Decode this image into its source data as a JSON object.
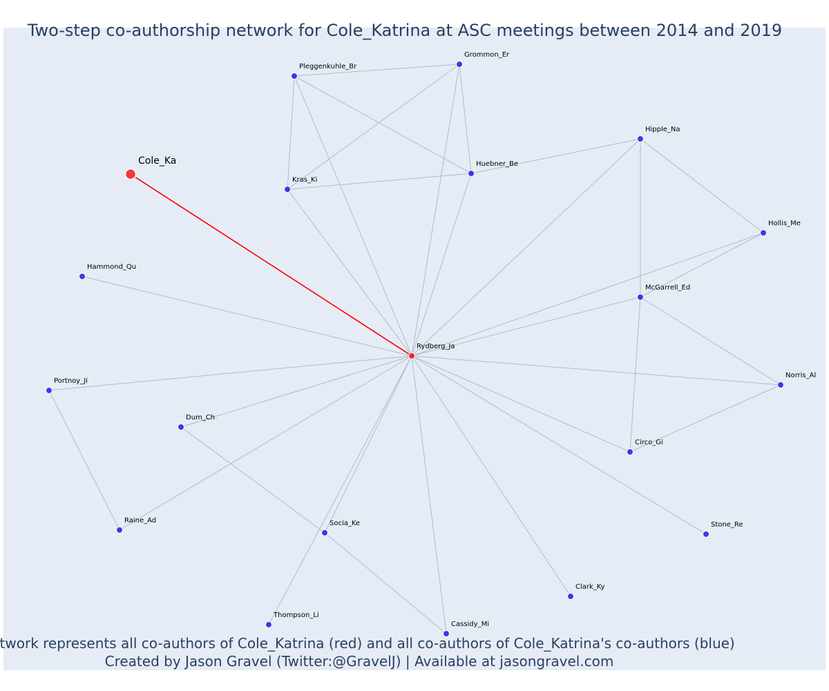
{
  "chart_data": {
    "type": "network",
    "title": "Two-step co-authorship network for Cole_Katrina at ASC meetings between 2014 and 2019",
    "caption_lines": [
      "Network represents all co-authors of Cole_Katrina (red) and all co-authors of Cole_Katrina's co-authors (blue)",
      "Created by Jason Gravel (Twitter:@GravelJ) | Available at jasongravel.com"
    ],
    "colors": {
      "background": "#e5ecf6",
      "focal_node": "#ef3b3b",
      "direct_coauthor": "#ef2a2a",
      "second_step_node": "#3a3ae8",
      "focal_edge": "#ff0000",
      "edge": "#b5b9c6",
      "text": "#2a3f5f"
    },
    "nodes": [
      {
        "id": "Cole_Ka",
        "label": "Cole_Ka",
        "group": "focal"
      },
      {
        "id": "Rydberg_Ja",
        "label": "Rydberg_Ja",
        "group": "coauthor"
      },
      {
        "id": "Grommon_Er",
        "label": "Grommon_Er",
        "group": "second"
      },
      {
        "id": "Pleggenkuhle_Br",
        "label": "Pleggenkuhle_Br",
        "group": "second"
      },
      {
        "id": "Hipple_Na",
        "label": "Hipple_Na",
        "group": "second"
      },
      {
        "id": "Huebner_Be",
        "label": "Huebner_Be",
        "group": "second"
      },
      {
        "id": "Kras_Ki",
        "label": "Kras_Ki",
        "group": "second"
      },
      {
        "id": "Hollis_Me",
        "label": "Hollis_Me",
        "group": "second"
      },
      {
        "id": "Hammond_Qu",
        "label": "Hammond_Qu",
        "group": "second"
      },
      {
        "id": "McGarrell_Ed",
        "label": "McGarrell_Ed",
        "group": "second"
      },
      {
        "id": "Norris_Al",
        "label": "Norris_Al",
        "group": "second"
      },
      {
        "id": "Portnoy_Ji",
        "label": "Portnoy_Ji",
        "group": "second"
      },
      {
        "id": "Dum_Ch",
        "label": "Dum_Ch",
        "group": "second"
      },
      {
        "id": "Circo_Gi",
        "label": "Circo_Gi",
        "group": "second"
      },
      {
        "id": "Raine_Ad",
        "label": "Raine_Ad",
        "group": "second"
      },
      {
        "id": "Socia_Ke",
        "label": "Socia_Ke",
        "group": "second"
      },
      {
        "id": "Stone_Re",
        "label": "Stone_Re",
        "group": "second"
      },
      {
        "id": "Clark_Ky",
        "label": "Clark_Ky",
        "group": "second"
      },
      {
        "id": "Thompson_Li",
        "label": "Thompson_Li",
        "group": "second"
      },
      {
        "id": "Cassidy_Mi",
        "label": "Cassidy_Mi",
        "group": "second"
      }
    ],
    "edges": [
      {
        "source": "Cole_Ka",
        "target": "Rydberg_Ja",
        "focal": true
      },
      {
        "source": "Rydberg_Ja",
        "target": "Grommon_Er"
      },
      {
        "source": "Rydberg_Ja",
        "target": "Pleggenkuhle_Br"
      },
      {
        "source": "Rydberg_Ja",
        "target": "Hipple_Na"
      },
      {
        "source": "Rydberg_Ja",
        "target": "Huebner_Be"
      },
      {
        "source": "Rydberg_Ja",
        "target": "Kras_Ki"
      },
      {
        "source": "Rydberg_Ja",
        "target": "Hollis_Me"
      },
      {
        "source": "Rydberg_Ja",
        "target": "Hammond_Qu"
      },
      {
        "source": "Rydberg_Ja",
        "target": "McGarrell_Ed"
      },
      {
        "source": "Rydberg_Ja",
        "target": "Norris_Al"
      },
      {
        "source": "Rydberg_Ja",
        "target": "Portnoy_Ji"
      },
      {
        "source": "Rydberg_Ja",
        "target": "Dum_Ch"
      },
      {
        "source": "Rydberg_Ja",
        "target": "Circo_Gi"
      },
      {
        "source": "Rydberg_Ja",
        "target": "Raine_Ad"
      },
      {
        "source": "Rydberg_Ja",
        "target": "Socia_Ke"
      },
      {
        "source": "Rydberg_Ja",
        "target": "Stone_Re"
      },
      {
        "source": "Rydberg_Ja",
        "target": "Clark_Ky"
      },
      {
        "source": "Rydberg_Ja",
        "target": "Thompson_Li"
      },
      {
        "source": "Rydberg_Ja",
        "target": "Cassidy_Mi"
      },
      {
        "source": "Pleggenkuhle_Br",
        "target": "Grommon_Er"
      },
      {
        "source": "Pleggenkuhle_Br",
        "target": "Kras_Ki"
      },
      {
        "source": "Pleggenkuhle_Br",
        "target": "Huebner_Be"
      },
      {
        "source": "Grommon_Er",
        "target": "Kras_Ki"
      },
      {
        "source": "Grommon_Er",
        "target": "Huebner_Be"
      },
      {
        "source": "Kras_Ki",
        "target": "Huebner_Be"
      },
      {
        "source": "Huebner_Be",
        "target": "Hipple_Na"
      },
      {
        "source": "Hipple_Na",
        "target": "Hollis_Me"
      },
      {
        "source": "Hipple_Na",
        "target": "McGarrell_Ed"
      },
      {
        "source": "Hollis_Me",
        "target": "McGarrell_Ed"
      },
      {
        "source": "McGarrell_Ed",
        "target": "Norris_Al"
      },
      {
        "source": "McGarrell_Ed",
        "target": "Circo_Gi"
      },
      {
        "source": "Norris_Al",
        "target": "Circo_Gi"
      },
      {
        "source": "Portnoy_Ji",
        "target": "Raine_Ad"
      },
      {
        "source": "Dum_Ch",
        "target": "Socia_Ke"
      },
      {
        "source": "Socia_Ke",
        "target": "Cassidy_Mi"
      }
    ]
  }
}
